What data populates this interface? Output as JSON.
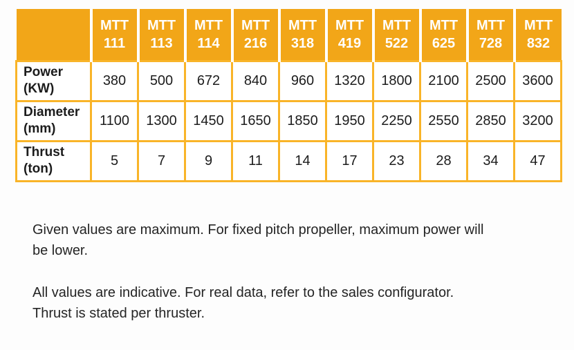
{
  "colors": {
    "header_bg": "#F2A618",
    "table_border": "#F9B428",
    "header_text": "#FFFFFF",
    "body_text": "#1C1C1C"
  },
  "table": {
    "corner_label": "",
    "columns": [
      "MTT\n111",
      "MTT\n113",
      "MTT\n114",
      "MTT\n216",
      "MTT\n318",
      "MTT\n419",
      "MTT\n522",
      "MTT\n625",
      "MTT\n728",
      "MTT\n832"
    ],
    "rows": [
      {
        "label": "Power\n(KW)",
        "values": [
          "380",
          "500",
          "672",
          "840",
          "960",
          "1320",
          "1800",
          "2100",
          "2500",
          "3600"
        ]
      },
      {
        "label": "Diameter\n(mm)",
        "values": [
          "1100",
          "1300",
          "1450",
          "1650",
          "1850",
          "1950",
          "2250",
          "2550",
          "2850",
          "3200"
        ]
      },
      {
        "label": "Thrust\n(ton)",
        "values": [
          "5",
          "7",
          "9",
          "11",
          "14",
          "17",
          "23",
          "28",
          "34",
          "47"
        ]
      }
    ]
  },
  "notes": [
    "Given values are maximum. For fixed pitch propeller, maximum power will\nbe lower.",
    "All values are indicative. For real data, refer to the sales configurator.\nThrust is stated per thruster."
  ]
}
